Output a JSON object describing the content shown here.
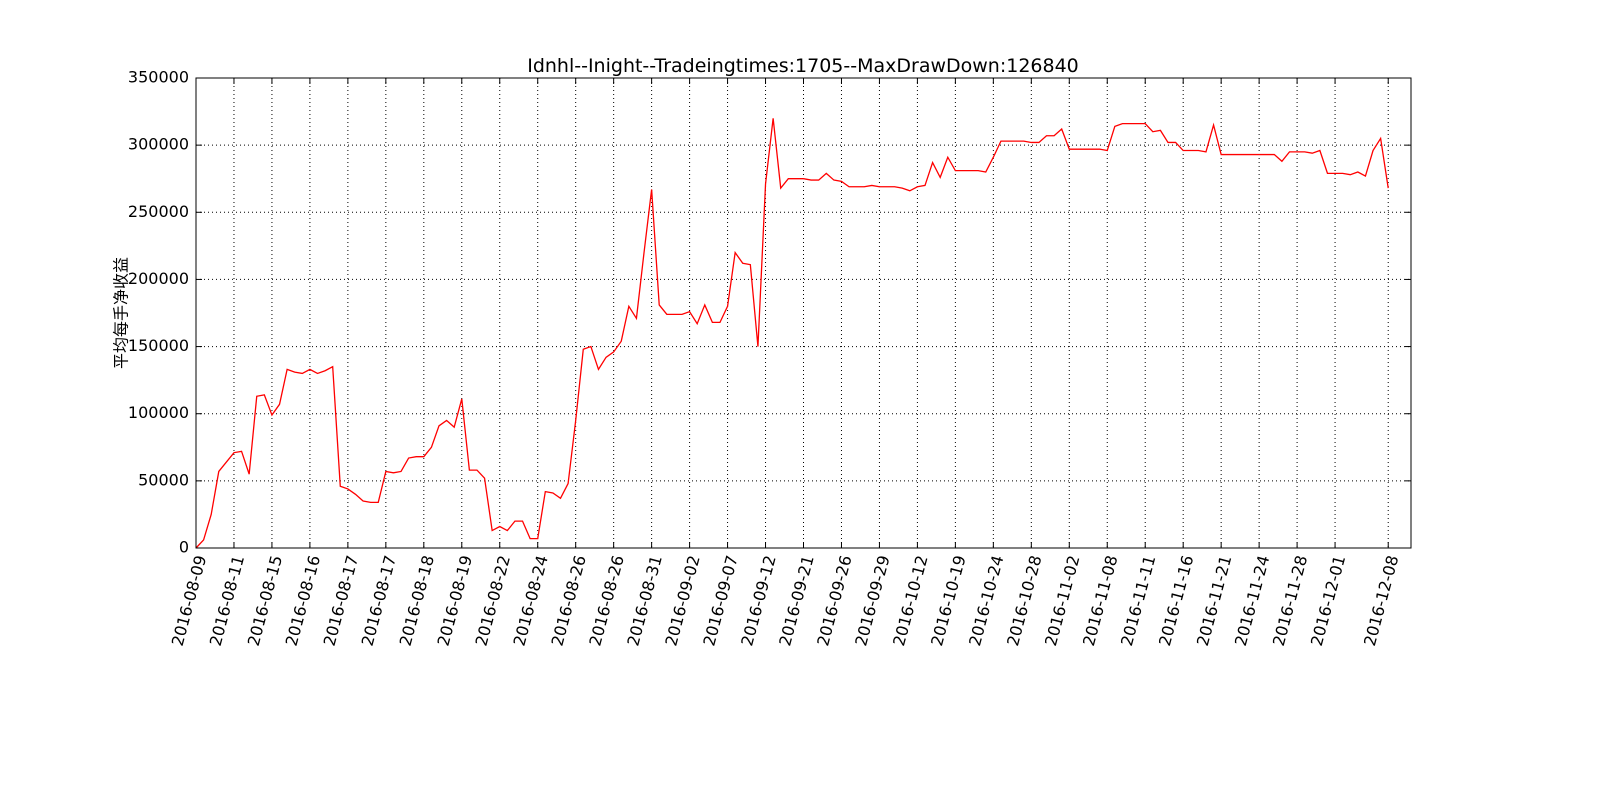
{
  "chart_data": {
    "type": "line",
    "title": "Idnhl--Inight--Tradeingtimes:1705--MaxDrawDown:126840",
    "y_label": "平均每手净收益",
    "series": [
      {
        "color": "#ff0000",
        "values": [
          0,
          6000,
          25000,
          57000,
          64000,
          71000,
          72000,
          55000,
          113000,
          114000,
          99000,
          107000,
          133000,
          131000,
          130000,
          133000,
          130000,
          132000,
          135000,
          46000,
          44000,
          40000,
          35000,
          34000,
          34000,
          57000,
          56000,
          57000,
          67000,
          68000,
          68000,
          75000,
          91000,
          95000,
          90000,
          111000,
          58000,
          58000,
          52000,
          13000,
          16000,
          13000,
          20000,
          20000,
          7000,
          7000,
          42000,
          41000,
          37000,
          48000,
          95000,
          148000,
          150000,
          133000,
          142000,
          146000,
          154000,
          180000,
          171000,
          220000,
          267000,
          181000,
          174000,
          174000,
          174000,
          176000,
          167000,
          181000,
          168000,
          168000,
          180000,
          220000,
          212000,
          211000,
          150000,
          271000,
          320000,
          268000,
          275000,
          275000,
          275000,
          274000,
          274000,
          279000,
          274000,
          273000,
          269000,
          269000,
          269000,
          270000,
          269000,
          269000,
          269000,
          268000,
          266000,
          269000,
          270000,
          287000,
          276000,
          291000,
          281000,
          281000,
          281000,
          281000,
          280000,
          291000,
          303000,
          303000,
          303000,
          303000,
          302000,
          302000,
          307000,
          307000,
          312000,
          297000,
          297000,
          297000,
          297000,
          297000,
          296000,
          314000,
          316000,
          316000,
          316000,
          316000,
          310000,
          311000,
          302000,
          302000,
          296000,
          296000,
          296000,
          295000,
          315000,
          293000,
          293000,
          293000,
          293000,
          293000,
          293000,
          293000,
          293000,
          288000,
          295000,
          295000,
          295000,
          294000,
          296000,
          279000,
          279000,
          279000,
          278000,
          280000,
          277000,
          296000,
          305000,
          268000
        ]
      }
    ],
    "xlim": [
      0,
      160
    ],
    "xticks": [
      {
        "value": 0,
        "label": "2016-08-09"
      },
      {
        "value": 5,
        "label": "2016-08-11"
      },
      {
        "value": 10,
        "label": "2016-08-15"
      },
      {
        "value": 15,
        "label": "2016-08-16"
      },
      {
        "value": 20,
        "label": "2016-08-17"
      },
      {
        "value": 25,
        "label": "2016-08-17"
      },
      {
        "value": 30,
        "label": "2016-08-18"
      },
      {
        "value": 35,
        "label": "2016-08-19"
      },
      {
        "value": 40,
        "label": "2016-08-22"
      },
      {
        "value": 45,
        "label": "2016-08-24"
      },
      {
        "value": 50,
        "label": "2016-08-26"
      },
      {
        "value": 55,
        "label": "2016-08-26"
      },
      {
        "value": 60,
        "label": "2016-08-31"
      },
      {
        "value": 65,
        "label": "2016-09-02"
      },
      {
        "value": 70,
        "label": "2016-09-07"
      },
      {
        "value": 75,
        "label": "2016-09-12"
      },
      {
        "value": 80,
        "label": "2016-09-21"
      },
      {
        "value": 85,
        "label": "2016-09-26"
      },
      {
        "value": 90,
        "label": "2016-09-29"
      },
      {
        "value": 95,
        "label": "2016-10-12"
      },
      {
        "value": 100,
        "label": "2016-10-19"
      },
      {
        "value": 105,
        "label": "2016-10-24"
      },
      {
        "value": 110,
        "label": "2016-10-28"
      },
      {
        "value": 115,
        "label": "2016-11-02"
      },
      {
        "value": 120,
        "label": "2016-11-08"
      },
      {
        "value": 125,
        "label": "2016-11-11"
      },
      {
        "value": 130,
        "label": "2016-11-16"
      },
      {
        "value": 135,
        "label": "2016-11-21"
      },
      {
        "value": 140,
        "label": "2016-11-24"
      },
      {
        "value": 145,
        "label": "2016-11-28"
      },
      {
        "value": 150,
        "label": "2016-12-01"
      },
      {
        "value": 157,
        "label": "2016-12-08"
      }
    ],
    "ylim": [
      0,
      350000
    ],
    "yticks": [
      0,
      50000,
      100000,
      150000,
      200000,
      250000,
      300000,
      350000
    ],
    "grid": true
  }
}
